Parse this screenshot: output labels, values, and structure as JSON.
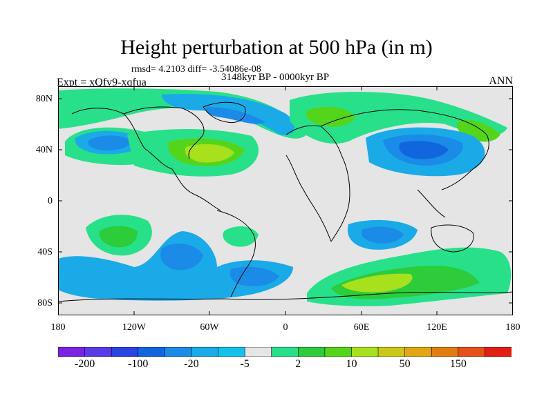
{
  "title": "Height perturbation at 500 hPa (in m)",
  "stats": "rmsd= 4.2103 diff= -3.54086e-08",
  "experiment": "Expt = xQfv9-xqfua",
  "period": "3148kyr BP - 0000kyr BP",
  "season": "ANN",
  "lat_labels": [
    "80N",
    "40N",
    "0",
    "40S",
    "80S"
  ],
  "lon_labels": [
    "180",
    "120W",
    "60W",
    "0",
    "60E",
    "120E",
    "180"
  ],
  "colorbar": {
    "labels": [
      "-200",
      "-100",
      "-20",
      "-5",
      "2",
      "10",
      "50",
      "150"
    ],
    "colors": [
      "#7b22e3",
      "#5a3be8",
      "#2a44e0",
      "#1166dd",
      "#1a8be6",
      "#1aaae8",
      "#12c2ea",
      "#e5e5e5",
      "#28e08a",
      "#2ccc3a",
      "#55d41c",
      "#a7e01c",
      "#ccc715",
      "#e1a712",
      "#e27c12",
      "#e6501a",
      "#e21e14"
    ],
    "label_positions": [
      1,
      3,
      5,
      7,
      9,
      11,
      13,
      15
    ]
  },
  "map_fill_colors": {
    "background": "#e5e5e5",
    "neg_light": "#1aaae8",
    "neg_mid": "#1a8be6",
    "neg_strong": "#1166dd",
    "pos_light": "#28e08a",
    "pos_mid": "#2ccc3a",
    "pos_strong": "#a7e01c"
  }
}
